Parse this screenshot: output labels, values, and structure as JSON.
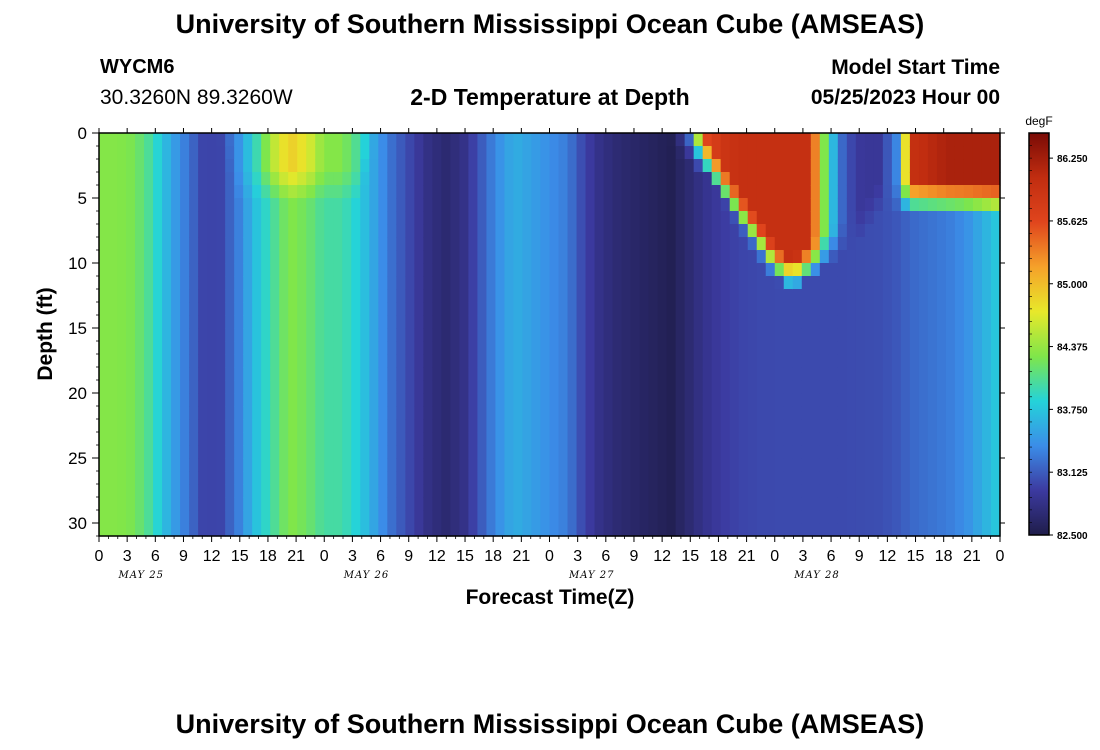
{
  "header": {
    "title": "University of Southern Mississippi Ocean Cube (AMSEAS)",
    "station_id": "WYCM6",
    "station_coords": "30.3260N  89.3260W",
    "plot_title": "2-D Temperature at Depth",
    "start_label": "Model Start Time",
    "start_value": "05/25/2023 Hour 00"
  },
  "footer": {
    "title": "University of Southern Mississippi Ocean Cube (AMSEAS)"
  },
  "chart_data": {
    "type": "heatmap",
    "title": "2-D Temperature at Depth",
    "xlabel": "Forecast Time(Z)",
    "ylabel": "Depth (ft)",
    "x_hours_range": [
      0,
      96
    ],
    "xticks_labels": [
      "0",
      "3",
      "6",
      "9",
      "12",
      "15",
      "18",
      "21",
      "0",
      "3",
      "6",
      "9",
      "12",
      "15",
      "18",
      "21",
      "0",
      "3",
      "6",
      "9",
      "12",
      "15",
      "18",
      "21",
      "0",
      "3",
      "6",
      "9",
      "12",
      "15",
      "18",
      "21",
      "0"
    ],
    "date_labels": [
      "MAY 25",
      "MAY 26",
      "MAY 27",
      "MAY 28"
    ],
    "ylim": [
      0,
      31
    ],
    "yticks": [
      0,
      5,
      10,
      15,
      20,
      25,
      30
    ],
    "colorbar": {
      "unit": "degF",
      "min": 82.5,
      "max": 86.5,
      "tick_labels": [
        "86.250",
        "85.625",
        "85.000",
        "84.375",
        "83.750",
        "83.125",
        "82.500"
      ],
      "tick_values": [
        86.25,
        85.625,
        85.0,
        84.375,
        83.75,
        83.125,
        82.5
      ],
      "stops": [
        "#1f1d4a",
        "#3c3aa0",
        "#3b8de8",
        "#24d3d9",
        "#7fe64a",
        "#e8e82a",
        "#f5a12a",
        "#e0451d",
        "#c12d10",
        "#7a0b06"
      ]
    },
    "surface_temp_degF": [
      84.3,
      84.3,
      84.25,
      84.0,
      83.6,
      83.3,
      83.0,
      83.0,
      83.4,
      83.9,
      84.5,
      84.9,
      84.7,
      84.3,
      84.3,
      84.0,
      83.5,
      83.2,
      83.0,
      82.8,
      82.7,
      82.8,
      83.1,
      83.4,
      83.6,
      83.5,
      83.4,
      83.3,
      83.0,
      82.8,
      82.7,
      82.65,
      82.6,
      82.55,
      83.2,
      85.6,
      85.9,
      86.0,
      86.0,
      86.0,
      86.0,
      86.0,
      84.0,
      83.1,
      82.9,
      82.9,
      83.3,
      86.0,
      86.1,
      86.2,
      86.2,
      86.2,
      86.2
    ],
    "deep_temp_degF": [
      84.3,
      84.3,
      84.25,
      84.0,
      83.6,
      83.3,
      83.0,
      83.0,
      83.3,
      83.7,
      84.0,
      84.3,
      84.2,
      84.0,
      84.0,
      83.8,
      83.5,
      83.2,
      83.0,
      82.8,
      82.75,
      82.8,
      83.1,
      83.3,
      83.4,
      83.4,
      83.35,
      83.25,
      83.0,
      82.8,
      82.7,
      82.6,
      82.55,
      82.55,
      82.7,
      82.85,
      82.95,
      83.0,
      83.02,
      83.03,
      83.03,
      83.03,
      83.03,
      83.03,
      83.04,
      83.05,
      83.1,
      83.2,
      83.25,
      83.3,
      83.4,
      83.6,
      83.8
    ],
    "mixed_layer_depth_ft": [
      0,
      0,
      0,
      0,
      0,
      0,
      0,
      0,
      4,
      4,
      4,
      4,
      4,
      4,
      4,
      4,
      0,
      0,
      0,
      0,
      0,
      0,
      0,
      0,
      0,
      0,
      0,
      0,
      0,
      0,
      0,
      0,
      0,
      0,
      1,
      2,
      4,
      6,
      8,
      10,
      11,
      10,
      9,
      8,
      7,
      5,
      5,
      5,
      5,
      5,
      5,
      5,
      5
    ]
  }
}
